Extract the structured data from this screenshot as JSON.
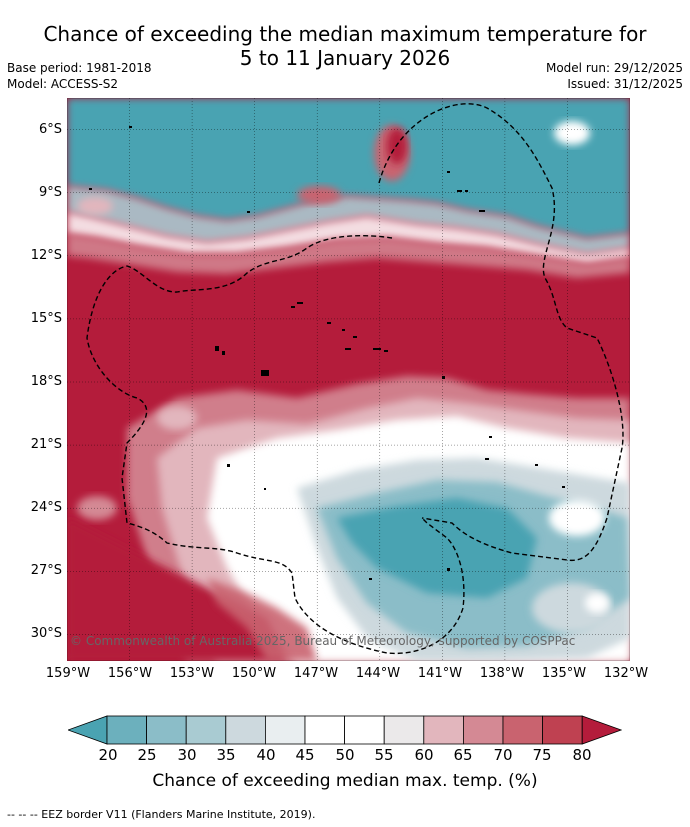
{
  "title": {
    "line1": "Chance of exceeding the median maximum temperature for",
    "line2": "5 to 11 January 2026"
  },
  "meta_left": {
    "base_period": "Base period: 1981-2018",
    "model": "Model: ACCESS-S2"
  },
  "meta_right": {
    "model_run": "Model run: 29/12/2025",
    "issued": "Issued: 31/12/2025"
  },
  "map": {
    "latitude_labels": [
      "6°S",
      "9°S",
      "12°S",
      "15°S",
      "18°S",
      "21°S",
      "24°S",
      "27°S",
      "30°S"
    ],
    "longitude_labels": [
      "159°W",
      "156°W",
      "153°W",
      "150°W",
      "147°W",
      "144°W",
      "141°W",
      "138°W",
      "135°W",
      "132°W"
    ],
    "credit": "© Commonwealth of Australia 2025, Bureau of Meteorology, supported by COSPPac"
  },
  "colorbar": {
    "ticks": [
      "20",
      "25",
      "30",
      "35",
      "40",
      "45",
      "50",
      "55",
      "60",
      "65",
      "70",
      "75",
      "80"
    ],
    "colors": [
      "#4aa3b2",
      "#6cb0bd",
      "#8bbdc8",
      "#a9cbd2",
      "#cdd9de",
      "#e9eef0",
      "#ffffff",
      "#ffffff",
      "#ebe9ea",
      "#e2b6bd",
      "#d48994",
      "#c9636f",
      "#bf4151",
      "#b41c3b"
    ],
    "label": "Chance of exceeding median max. temp. (%)"
  },
  "footer": "-- -- -- EEZ border V11 (Flanders Marine Institute, 2019)."
}
